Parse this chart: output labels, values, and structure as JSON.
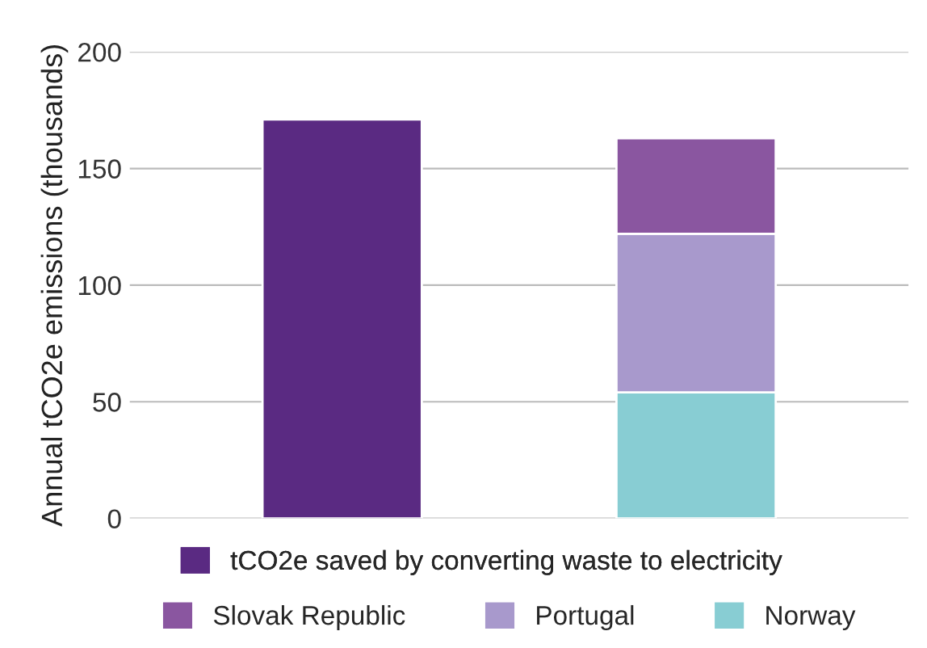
{
  "chart_data": {
    "type": "bar",
    "stacked": true,
    "ylabel": "Annual tCO2e emissions (thousands)",
    "categories": [
      null,
      null
    ],
    "series": [
      {
        "name": "tCO2e saved by converting waste to electricity",
        "color": "#5a2a82",
        "values": [
          171,
          null
        ]
      },
      {
        "name": "Norway",
        "color": "#88cdd3",
        "values": [
          null,
          54
        ]
      },
      {
        "name": "Portugal",
        "color": "#a899cc",
        "values": [
          null,
          68
        ]
      },
      {
        "name": "Slovak Republic",
        "color": "#8a56a0",
        "values": [
          null,
          41
        ]
      }
    ],
    "ylim": [
      0,
      200
    ],
    "yticks": [
      0,
      50,
      100,
      150,
      200
    ],
    "grid": "y",
    "legend": "bottom"
  }
}
